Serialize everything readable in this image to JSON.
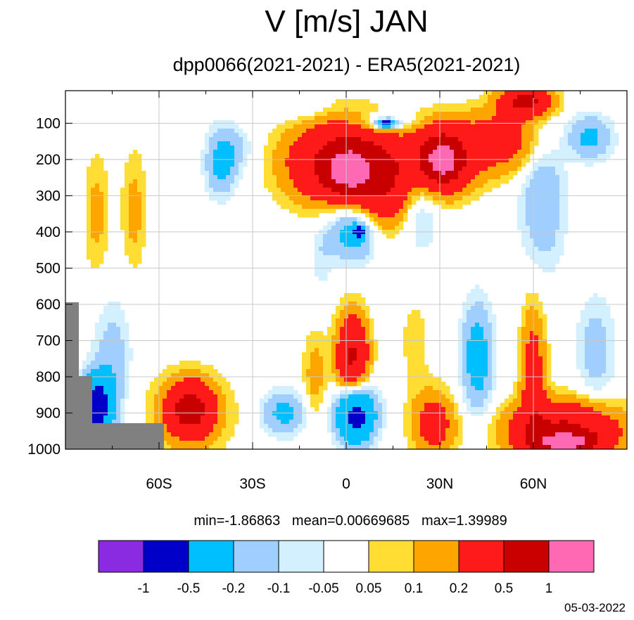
{
  "title": "V [m/s] JAN",
  "subtitle": "dpp0066(2021-2021) - ERA5(2021-2021)",
  "stats": {
    "min": "min=-1.86863",
    "mean": "mean=0.00669685",
    "max": "max=1.39989"
  },
  "date": "05-03-2022",
  "chart_data": {
    "type": "heatmap",
    "title": "V [m/s] JAN",
    "subtitle": "dpp0066(2021-2021) - ERA5(2021-2021)",
    "xlabel": "",
    "ylabel": "",
    "xlim": [
      -90,
      90
    ],
    "ylim": [
      1000,
      10
    ],
    "x_ticks": [
      {
        "value": -60,
        "label": "60S"
      },
      {
        "value": -30,
        "label": "30S"
      },
      {
        "value": 0,
        "label": "0"
      },
      {
        "value": 30,
        "label": "30N"
      },
      {
        "value": 60,
        "label": "60N"
      }
    ],
    "y_ticks": [
      {
        "value": 100,
        "label": "100"
      },
      {
        "value": 200,
        "label": "200"
      },
      {
        "value": 300,
        "label": "300"
      },
      {
        "value": 400,
        "label": "400"
      },
      {
        "value": 500,
        "label": "500"
      },
      {
        "value": 600,
        "label": "600"
      },
      {
        "value": 700,
        "label": "700"
      },
      {
        "value": 800,
        "label": "800"
      },
      {
        "value": 900,
        "label": "900"
      },
      {
        "value": 1000,
        "label": "1000"
      }
    ],
    "grid": true,
    "colorbar": {
      "levels": [
        "-1",
        "-0.5",
        "-0.2",
        "-0.1",
        "-0.05",
        "0.05",
        "0.1",
        "0.2",
        "0.5",
        "1"
      ],
      "colors": [
        "#8a2be2",
        "#0000c8",
        "#00bfff",
        "#a0cfff",
        "#d2f0ff",
        "#ffffff",
        "#ffdd33",
        "#ffa500",
        "#ff1a1a",
        "#c80000",
        "#ff69b4"
      ]
    },
    "features": [
      {
        "x": 0,
        "p": 210,
        "rx": 17,
        "rp": 110,
        "v": 0.7
      },
      {
        "x": 1,
        "p": 230,
        "rx": 6,
        "rp": 50,
        "v": 1.0
      },
      {
        "x": 30,
        "p": 200,
        "rx": 10,
        "rp": 90,
        "v": 0.7
      },
      {
        "x": 31,
        "p": 200,
        "rx": 4,
        "rp": 40,
        "v": 1.0
      },
      {
        "x": 12,
        "p": 290,
        "rx": 8,
        "rp": 110,
        "v": 0.3
      },
      {
        "x": 2,
        "p": 400,
        "rx": 8,
        "rp": 80,
        "v": -0.3
      },
      {
        "x": 4,
        "p": 400,
        "rx": 2,
        "rp": 15,
        "v": -0.6
      },
      {
        "x": 12,
        "p": 100,
        "rx": 9,
        "rp": 30,
        "v": -0.2
      },
      {
        "x": 13,
        "p": 100,
        "rx": 3,
        "rp": 10,
        "v": -0.6
      },
      {
        "x": -40,
        "p": 210,
        "rx": 5,
        "rp": 90,
        "v": -0.25
      },
      {
        "x": -35,
        "p": 170,
        "rx": 6,
        "rp": 60,
        "v": -0.1
      },
      {
        "x": -80,
        "p": 350,
        "rx": 4,
        "rp": 170,
        "v": 0.13
      },
      {
        "x": -68,
        "p": 340,
        "rx": 4,
        "rp": 170,
        "v": 0.13
      },
      {
        "x": 63,
        "p": 300,
        "rx": 7,
        "rp": 200,
        "v": -0.2
      },
      {
        "x": 78,
        "p": 140,
        "rx": 7,
        "rp": 60,
        "v": -0.25
      },
      {
        "x": 50,
        "p": 150,
        "rx": 14,
        "rp": 90,
        "v": 0.3
      },
      {
        "x": 58,
        "p": 40,
        "rx": 8,
        "rp": 40,
        "v": 0.6
      },
      {
        "x": 24,
        "p": 300,
        "rx": 6,
        "rp": 150,
        "v": -0.15
      },
      {
        "x": 2,
        "p": 750,
        "rx": 5,
        "rp": 120,
        "v": 0.55
      },
      {
        "x": 3,
        "p": 900,
        "rx": 6,
        "rp": 80,
        "v": -0.7
      },
      {
        "x": -50,
        "p": 890,
        "rx": 7,
        "rp": 70,
        "v": 0.55
      },
      {
        "x": -50,
        "p": 900,
        "rx": 14,
        "rp": 120,
        "v": 0.15
      },
      {
        "x": -80,
        "p": 880,
        "rx": 5,
        "rp": 80,
        "v": -0.7
      },
      {
        "x": -75,
        "p": 750,
        "rx": 6,
        "rp": 160,
        "v": -0.15
      },
      {
        "x": -20,
        "p": 900,
        "rx": 7,
        "rp": 60,
        "v": -0.25
      },
      {
        "x": 28,
        "p": 930,
        "rx": 7,
        "rp": 90,
        "v": 0.3
      },
      {
        "x": 42,
        "p": 750,
        "rx": 5,
        "rp": 150,
        "v": -0.3
      },
      {
        "x": 70,
        "p": 950,
        "rx": 18,
        "rp": 80,
        "v": 0.55
      },
      {
        "x": 70,
        "p": 980,
        "rx": 8,
        "rp": 25,
        "v": 1.1
      },
      {
        "x": 60,
        "p": 800,
        "rx": 4,
        "rp": 200,
        "v": 0.3
      },
      {
        "x": 80,
        "p": 730,
        "rx": 6,
        "rp": 150,
        "v": -0.15
      },
      {
        "x": -10,
        "p": 800,
        "rx": 4,
        "rp": 130,
        "v": 0.14
      },
      {
        "x": -15,
        "p": 60,
        "rx": 10,
        "rp": 30,
        "v": -0.08
      },
      {
        "x": 22,
        "p": 700,
        "rx": 6,
        "rp": 150,
        "v": 0.07
      },
      {
        "x": -8,
        "p": 480,
        "rx": 3,
        "rp": 100,
        "v": -0.07
      }
    ]
  }
}
